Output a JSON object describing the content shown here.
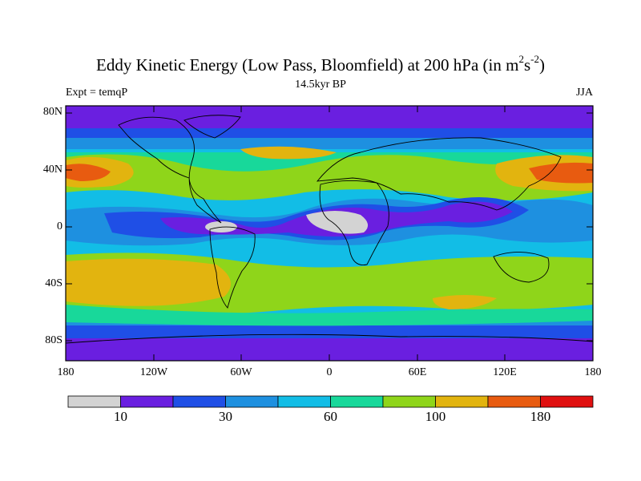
{
  "title": {
    "main": "Eddy Kinetic Energy (Low Pass, Bloomfield) at 200 hPa (in m",
    "sup1": "2",
    "mid": "s",
    "sup2": "-2",
    "tail": ")"
  },
  "left_label": "Expt = temqP",
  "center_label": "14.5kyr BP",
  "right_label": "JJA",
  "map": {
    "projection": "cylindrical-equidistant",
    "lon_range": [
      -180,
      180
    ],
    "lat_range": [
      -90,
      90
    ],
    "lat_ticks": [
      {
        "value": 80,
        "label": "80N"
      },
      {
        "value": 40,
        "label": "40N"
      },
      {
        "value": 0,
        "label": "0"
      },
      {
        "value": -40,
        "label": "40S"
      },
      {
        "value": -80,
        "label": "80S"
      }
    ],
    "lon_ticks": [
      {
        "value": -180,
        "label": "180"
      },
      {
        "value": -120,
        "label": "120W"
      },
      {
        "value": -60,
        "label": "60W"
      },
      {
        "value": 0,
        "label": "0"
      },
      {
        "value": 60,
        "label": "60E"
      },
      {
        "value": 120,
        "label": "120E"
      },
      {
        "value": 180,
        "label": "180"
      }
    ]
  },
  "colorbar": {
    "colors": [
      "#d3d3d3",
      "#6a1fe0",
      "#1f4fe6",
      "#1e90e0",
      "#12bde6",
      "#18d89a",
      "#8fd51a",
      "#e2b40f",
      "#e85b10",
      "#e01010"
    ],
    "labels": [
      {
        "boundary": 1,
        "text": "10"
      },
      {
        "boundary": 3,
        "text": "30"
      },
      {
        "boundary": 5,
        "text": "60"
      },
      {
        "boundary": 7,
        "text": "100"
      },
      {
        "boundary": 9,
        "text": "180"
      }
    ]
  }
}
